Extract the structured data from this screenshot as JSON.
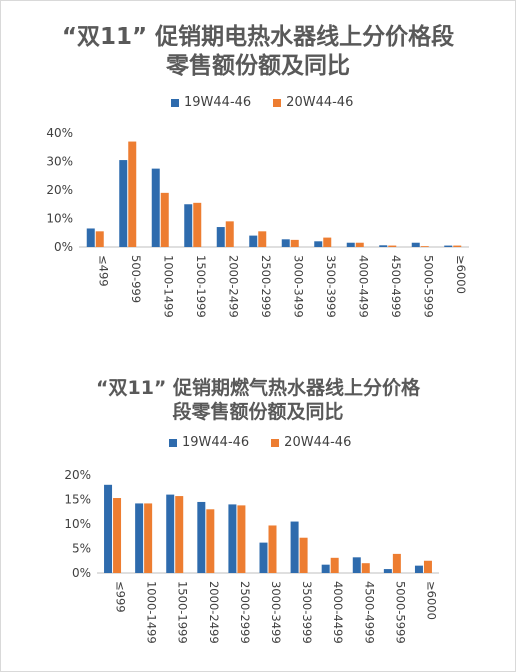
{
  "chart_data": [
    {
      "type": "bar",
      "title": "“双11” 促销期电热水器线上分价格段零售额份额及同比",
      "title_lines": [
        "“双11”  促销期电热水器线上分价格段",
        "零售额份额及同比"
      ],
      "categories": [
        "≤499",
        "500-999",
        "1000-1499",
        "1500-1999",
        "2000-2499",
        "2500-2999",
        "3000-3499",
        "3500-3999",
        "4000-4499",
        "4500-4999",
        "5000-5999",
        "≥6000"
      ],
      "series": [
        {
          "name": "19W44-46",
          "values": [
            6.5,
            30.5,
            27.5,
            15.0,
            7.0,
            4.0,
            2.7,
            2.0,
            1.5,
            0.6,
            1.5,
            0.5
          ],
          "color": "#2e6bad"
        },
        {
          "name": "20W44-46",
          "values": [
            5.5,
            37.0,
            19.0,
            15.5,
            9.0,
            5.5,
            2.5,
            3.3,
            1.5,
            0.5,
            0.3,
            0.5
          ],
          "color": "#ed7d31"
        }
      ],
      "yticks": [
        "0%",
        "10%",
        "20%",
        "30%",
        "40%"
      ],
      "ylim": [
        0,
        40
      ],
      "xlabel": "",
      "ylabel": "",
      "grid": false,
      "legend_position": "top"
    },
    {
      "type": "bar",
      "title": "“双11” 促销期燃气热水器线上分价格段零售额份额及同比",
      "title_lines": [
        "“双11”  促销期燃气热水器线上分价格",
        "段零售额份额及同比"
      ],
      "categories": [
        "≤999",
        "1000-1499",
        "1500-1999",
        "2000-2499",
        "2500-2999",
        "3000-3499",
        "3500-3999",
        "4000-4499",
        "4500-4999",
        "5000-5999",
        "≥6000"
      ],
      "series": [
        {
          "name": "19W44-46",
          "values": [
            18.0,
            14.2,
            16.0,
            14.5,
            14.0,
            6.2,
            10.5,
            1.7,
            3.2,
            0.8,
            1.5
          ],
          "color": "#2e6bad"
        },
        {
          "name": "20W44-46",
          "values": [
            15.3,
            14.2,
            15.7,
            13.0,
            13.8,
            9.7,
            7.2,
            3.1,
            2.0,
            3.9,
            2.5
          ],
          "color": "#ed7d31"
        }
      ],
      "yticks": [
        "0%",
        "5%",
        "10%",
        "15%",
        "20%"
      ],
      "ylim": [
        0,
        20
      ],
      "xlabel": "",
      "ylabel": "",
      "grid": false,
      "legend_position": "top"
    }
  ]
}
